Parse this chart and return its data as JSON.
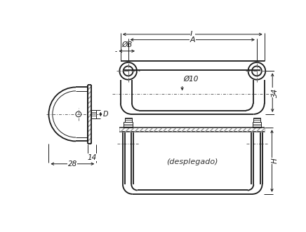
{
  "bg_color": "#ffffff",
  "line_color": "#1a1a1a",
  "dim_color": "#1a1a1a",
  "cl_color": "#666666",
  "labels": {
    "L": "L",
    "A": "A",
    "B": "ØB",
    "diam10": "Ø10",
    "dim34": "34",
    "dim14": "14",
    "dim28": "28",
    "D": "D",
    "desplegado": "(desplegado)",
    "H": "H"
  }
}
